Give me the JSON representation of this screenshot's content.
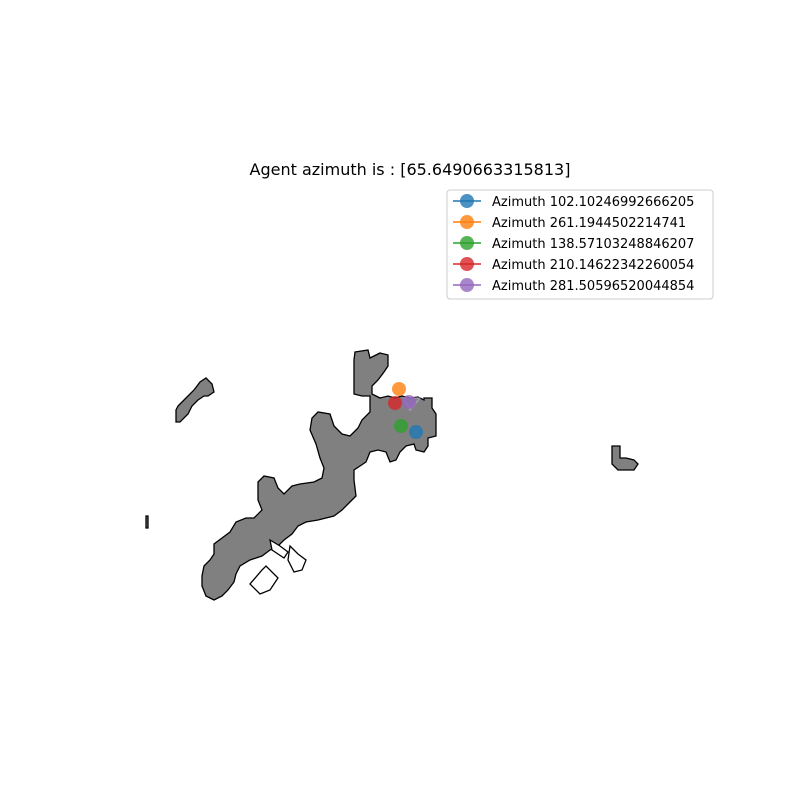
{
  "title": "Agent azimuth is : [65.6490663315813]",
  "legend": [
    {
      "label": "Azimuth 102.10246992666205",
      "color": "#1f77b4"
    },
    {
      "label": "Azimuth 261.1944502214741",
      "color": "#ff7f0e"
    },
    {
      "label": "Azimuth 138.57103248846207",
      "color": "#2ca02c"
    },
    {
      "label": "Azimuth 210.14622342260054",
      "color": "#d62728"
    },
    {
      "label": "Azimuth 281.50596520044854",
      "color": "#9467bd"
    }
  ],
  "map": {
    "fill_color": "#808080",
    "edge_color": "#000000"
  }
}
